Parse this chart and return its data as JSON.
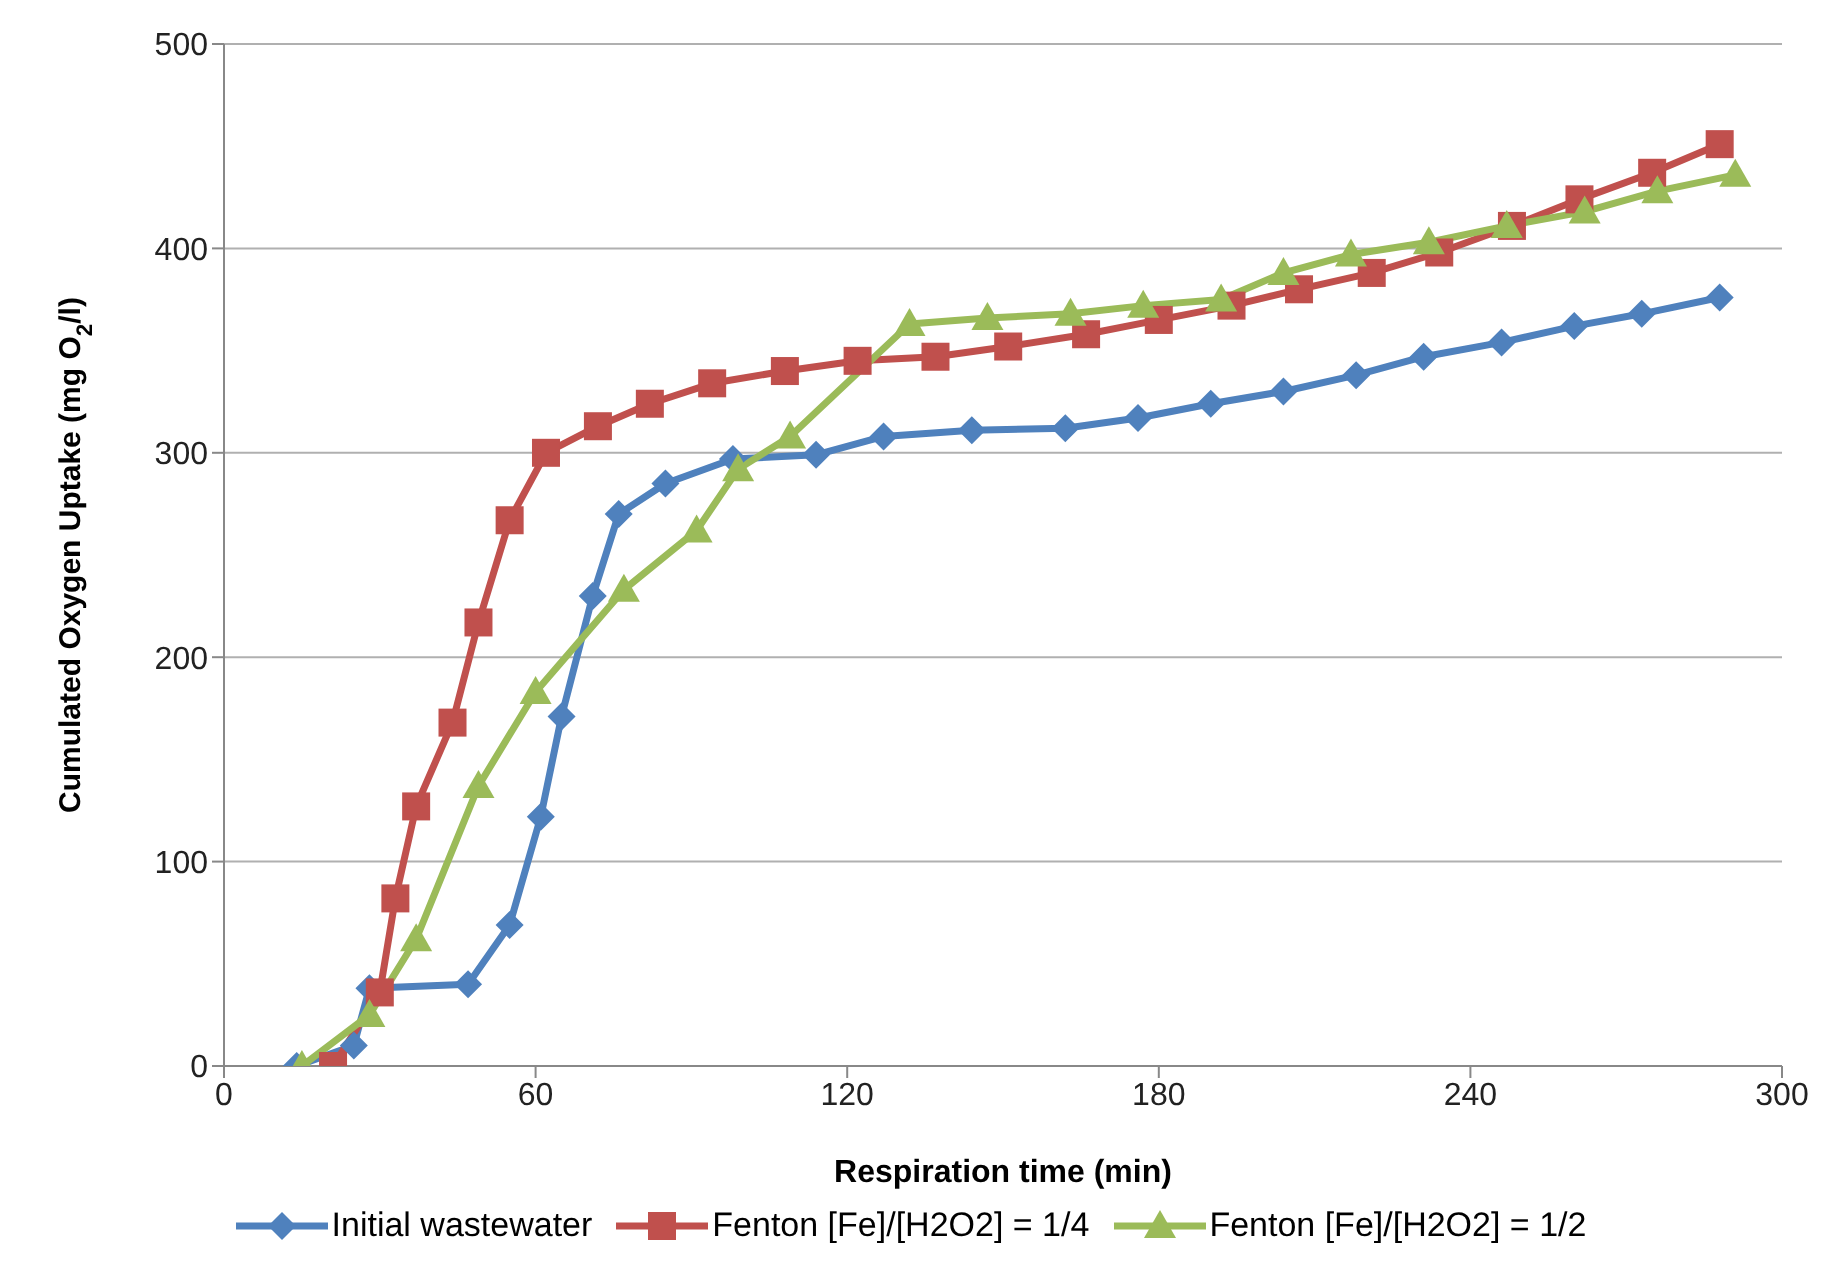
{
  "chart_data": {
    "type": "line",
    "xlabel": "Respiration time (min)",
    "ylabel": "Cumulated Oxygen Uptake (mg O$_{2}$/l)",
    "xlim": [
      0,
      300
    ],
    "xticks": [
      0,
      60,
      120,
      180,
      240,
      300
    ],
    "ylim": [
      0,
      500
    ],
    "yticks": [
      0,
      100,
      200,
      300,
      400,
      500
    ],
    "grid": "y",
    "legend": "bottom",
    "series": [
      {
        "name": "Initial wastewater",
        "color": "#4f81bd",
        "marker": "diamond",
        "x": [
          14,
          25,
          28,
          47,
          55,
          61,
          65,
          71,
          76,
          85,
          98,
          114,
          127,
          144,
          162,
          176,
          190,
          204,
          218,
          231,
          246,
          260,
          273,
          288
        ],
        "values": [
          0,
          10,
          38,
          40,
          69,
          122,
          171,
          230,
          270,
          285,
          297,
          299,
          308,
          311,
          312,
          317,
          324,
          330,
          338,
          347,
          354,
          362,
          368,
          376
        ]
      },
      {
        "name": "Fenton [Fe]/[H2O2] = 1/4",
        "color": "#c0504d",
        "marker": "square",
        "x": [
          21,
          30,
          33,
          37,
          44,
          49,
          55,
          62,
          72,
          82,
          94,
          108,
          122,
          137,
          151,
          166,
          180,
          194,
          207,
          221,
          234,
          248,
          261,
          275,
          288
        ],
        "values": [
          0,
          36,
          82,
          127,
          168,
          217,
          267,
          300,
          313,
          324,
          334,
          340,
          345,
          347,
          352,
          358,
          365,
          372,
          380,
          388,
          398,
          411,
          424,
          437,
          451
        ]
      },
      {
        "name": "Fenton [Fe]/[H2O2] = 1/2",
        "color": "#9bbb59",
        "marker": "triangle",
        "x": [
          15,
          28,
          37,
          49,
          60,
          77,
          91,
          99,
          109,
          132,
          147,
          163,
          177,
          192,
          204,
          217,
          232,
          247,
          262,
          276,
          291
        ],
        "values": [
          0,
          25,
          62,
          137,
          183,
          233,
          262,
          292,
          308,
          363,
          366,
          368,
          372,
          375,
          388,
          397,
          403,
          411,
          418,
          428,
          436
        ]
      }
    ]
  }
}
